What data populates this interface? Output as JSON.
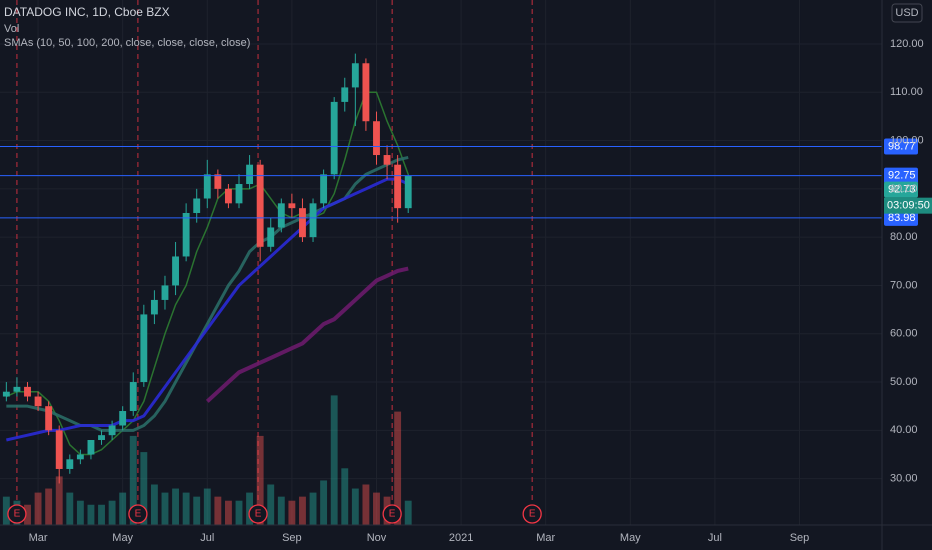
{
  "chart_data": {
    "type": "candlestick",
    "title": "DATADOG INC, 1D, Cboe BZX",
    "volume_title": "Vol",
    "indicator_title": "SMAs (10, 50, 100, 200, close, close, close, close)",
    "currency": "USD",
    "countdown": "03:09:50",
    "x": [
      2.25,
      2.5,
      2.75,
      3.0,
      3.25,
      3.5,
      3.75,
      4.0,
      4.25,
      4.5,
      4.75,
      5.0,
      5.25,
      5.5,
      5.75,
      6.0,
      6.25,
      6.5,
      6.75,
      7.0,
      7.25,
      7.5,
      7.75,
      8.0,
      8.25,
      8.5,
      8.75,
      9.0,
      9.25,
      9.5,
      9.75,
      10.0,
      10.25,
      10.5,
      10.75,
      11.0,
      11.25,
      11.5,
      11.75
    ],
    "open": [
      47,
      48,
      49,
      47,
      45,
      40,
      32,
      34,
      35,
      38,
      39,
      41,
      44,
      50,
      64,
      67,
      70,
      76,
      85,
      88,
      93,
      90,
      87,
      91,
      95,
      78,
      82,
      87,
      86,
      80,
      87,
      93,
      108,
      111,
      116,
      104,
      97,
      95,
      86
    ],
    "high": [
      50,
      51,
      50,
      48,
      46,
      41,
      35,
      36,
      38,
      40,
      42,
      45,
      52,
      66,
      69,
      72,
      79,
      87,
      90,
      96,
      94,
      91,
      93,
      97,
      96,
      84,
      88,
      89,
      88,
      88,
      94,
      109,
      113,
      118,
      117,
      106,
      99,
      97,
      93
    ],
    "low": [
      46,
      47,
      46,
      44,
      39,
      29,
      31,
      33,
      34,
      37,
      38,
      40,
      43,
      49,
      62,
      65,
      68,
      75,
      83,
      86,
      88,
      86,
      86,
      90,
      75,
      77,
      81,
      84,
      79,
      79,
      86,
      92,
      106,
      103,
      102,
      95,
      92,
      83,
      85
    ],
    "close": [
      48,
      49,
      47,
      45,
      40,
      32,
      34,
      35,
      38,
      39,
      41,
      44,
      50,
      64,
      67,
      70,
      76,
      85,
      88,
      93,
      90,
      87,
      91,
      95,
      78,
      82,
      87,
      86,
      80,
      87,
      93,
      108,
      111,
      116,
      104,
      97,
      95,
      86,
      92.73
    ],
    "volume": [
      7,
      6,
      5,
      8,
      9,
      12,
      8,
      6,
      5,
      5,
      6,
      8,
      22,
      18,
      10,
      8,
      9,
      8,
      7,
      9,
      7,
      6,
      6,
      8,
      22,
      10,
      7,
      6,
      7,
      8,
      11,
      32,
      14,
      9,
      10,
      8,
      7,
      28,
      6
    ],
    "volume_lim": [
      0,
      40
    ],
    "up_color": "#26a69a",
    "down_color": "#ef5350",
    "sma": [
      {
        "color": "#2e7d32",
        "values": [
          47,
          48,
          48,
          48,
          46,
          42,
          37,
          35,
          35,
          36,
          38,
          40,
          42,
          46,
          53,
          60,
          66,
          70,
          77,
          82,
          88,
          90,
          90,
          90,
          91,
          88,
          85,
          84,
          85,
          84,
          85,
          89,
          96,
          104,
          110,
          110,
          104,
          99,
          93
        ]
      },
      {
        "color": "#2a6b66",
        "values": [
          45,
          45,
          45,
          44.5,
          44,
          43,
          42,
          41,
          41,
          40,
          40,
          40,
          40,
          41,
          43,
          46,
          50,
          54,
          58,
          62,
          66,
          70,
          73,
          77,
          79,
          80,
          82,
          83,
          84,
          85,
          86,
          87,
          88,
          91,
          93,
          94,
          95,
          96,
          96.5
        ]
      },
      {
        "color": "#2a2ad6",
        "values": [
          38,
          38.5,
          39,
          39.5,
          40,
          40,
          40.5,
          41,
          41,
          41,
          41,
          42,
          42,
          43,
          46,
          49,
          52,
          55,
          58,
          61,
          64,
          67,
          70,
          72,
          74,
          76,
          78,
          80,
          82,
          84,
          86,
          87,
          88,
          89,
          90,
          91,
          92,
          92,
          91
        ]
      },
      {
        "color": "#6a1b6a",
        "values": [
          null,
          null,
          null,
          null,
          null,
          null,
          null,
          null,
          null,
          null,
          null,
          null,
          null,
          null,
          null,
          null,
          null,
          null,
          null,
          46,
          48,
          50,
          52,
          53,
          54,
          55,
          56,
          57,
          58,
          60,
          62,
          63,
          65,
          67,
          69,
          71,
          72,
          73,
          73.5
        ]
      }
    ],
    "hlines": [
      98.77,
      92.75,
      83.98
    ],
    "hline_color": "#2962ff",
    "events": {
      "x": [
        2.5,
        5.36,
        8.2,
        11.37,
        14.68
      ],
      "label": "E",
      "color": "#f23645"
    },
    "xlim": [
      2.1,
      22.95
    ],
    "xticks": [
      {
        "value": 3,
        "label": "Mar"
      },
      {
        "value": 5,
        "label": "May"
      },
      {
        "value": 7,
        "label": "Jul"
      },
      {
        "value": 9,
        "label": "Sep"
      },
      {
        "value": 11,
        "label": "Nov"
      },
      {
        "value": 13,
        "label": "2021"
      },
      {
        "value": 15,
        "label": "Mar"
      },
      {
        "value": 17,
        "label": "May"
      },
      {
        "value": 19,
        "label": "Jul"
      },
      {
        "value": 21,
        "label": "Sep"
      }
    ],
    "ylim": [
      20.4,
      129.1
    ],
    "yticks": [
      {
        "value": 30,
        "label": "30.00"
      },
      {
        "value": 40,
        "label": "40.00"
      },
      {
        "value": 50,
        "label": "50.00"
      },
      {
        "value": 60,
        "label": "60.00"
      },
      {
        "value": 70,
        "label": "70.00"
      },
      {
        "value": 80,
        "label": "80.00"
      },
      {
        "value": 90,
        "label": "90.00"
      },
      {
        "value": 100,
        "label": "100.00"
      },
      {
        "value": 110,
        "label": "110.00"
      },
      {
        "value": 120,
        "label": "120.00"
      }
    ],
    "grid": true
  }
}
